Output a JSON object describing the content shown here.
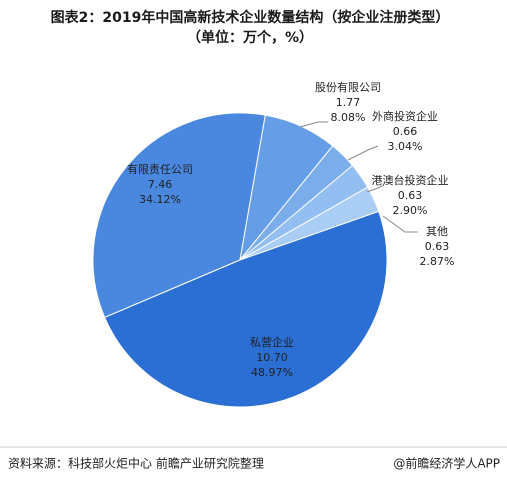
{
  "chart_data": {
    "type": "pie",
    "title": "图表2：2019年中国高新技术企业数量结构（按企业注册类型）",
    "subtitle": "（单位：万个，%）",
    "categories": [
      "有限责任公司",
      "股份有限公司",
      "外商投资企业",
      "港澳台投资企业",
      "其他",
      "私营企业"
    ],
    "values": [
      7.46,
      1.77,
      0.66,
      0.63,
      0.63,
      10.7
    ],
    "value_labels": [
      "7.46",
      "1.77",
      "0.66",
      "0.63",
      "0.63",
      "10.70"
    ],
    "shares": [
      34.12,
      8.08,
      3.04,
      2.9,
      2.87,
      48.97
    ],
    "share_labels": [
      "34.12%",
      "8.08%",
      "3.04%",
      "2.90%",
      "2.87%",
      "48.97%"
    ],
    "colors": [
      "#4a88e0",
      "#659de6",
      "#7badeb",
      "#93bef1",
      "#a9cdf5",
      "#2b6fd4"
    ],
    "source": "资料来源：科技部火炬中心 前瞻产业研究院整理",
    "credit": "@前瞻经济学人APP"
  }
}
